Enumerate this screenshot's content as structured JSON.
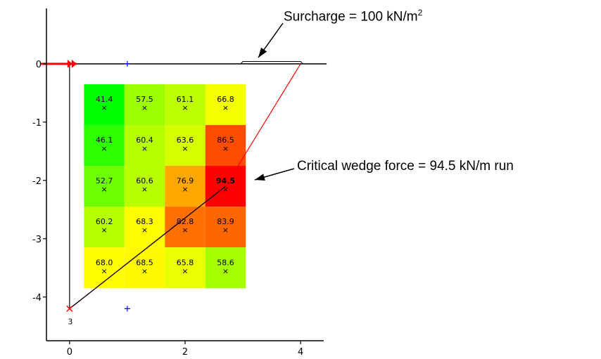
{
  "chart_data": {
    "type": "heatmap",
    "x_ticks": [
      "0",
      "2",
      "4"
    ],
    "y_ticks": [
      "0",
      "-1",
      "-2",
      "-3",
      "-4"
    ],
    "xlim": [
      -0.4,
      4.4
    ],
    "ylim": [
      -4.75,
      0.95
    ],
    "columns_x": [
      0.6,
      1.3,
      2.0,
      2.7
    ],
    "rows_y": [
      -0.7,
      -1.4,
      -2.1,
      -2.8,
      -3.5
    ],
    "cell_values": [
      [
        "41.4",
        "57.5",
        "61.1",
        "66.8"
      ],
      [
        "46.1",
        "60.4",
        "63.6",
        "86.5"
      ],
      [
        "52.7",
        "60.6",
        "76.9",
        "94.5"
      ],
      [
        "60.2",
        "68.3",
        "82.8",
        "83.9"
      ],
      [
        "68.0",
        "68.5",
        "65.8",
        "58.6"
      ]
    ],
    "max_value": "94.5",
    "surface_y": 0,
    "surface_x": [
      0,
      4.45
    ],
    "wall": {
      "x": 0,
      "top": 0,
      "bottom": -4.2
    },
    "surcharge": {
      "x": [
        3.0,
        4.0
      ],
      "y": 0.04
    },
    "failure_line_red": [
      [
        4.0,
        0
      ],
      [
        2.7,
        -2.1
      ],
      [
        0,
        -4.2
      ]
    ],
    "failure_line_black": [
      [
        2.7,
        -2.1
      ],
      [
        0,
        -4.2
      ]
    ],
    "markers": [
      [
        1.0,
        0
      ],
      [
        1.0,
        -4.2
      ]
    ],
    "wall_label": "3",
    "colors": {
      "low": "#00ff00",
      "mid": "#ffff00",
      "high": "#ff0000",
      "axis": "#000000",
      "wall": "#000000",
      "failure_line": "#ff0000",
      "marker": "#0000ff"
    }
  },
  "annotations": {
    "surcharge_text": "Surcharge = 100 kN/m",
    "surcharge_sup": "2",
    "critical_text": "Critical wedge force = 94.5 kN/m run"
  }
}
